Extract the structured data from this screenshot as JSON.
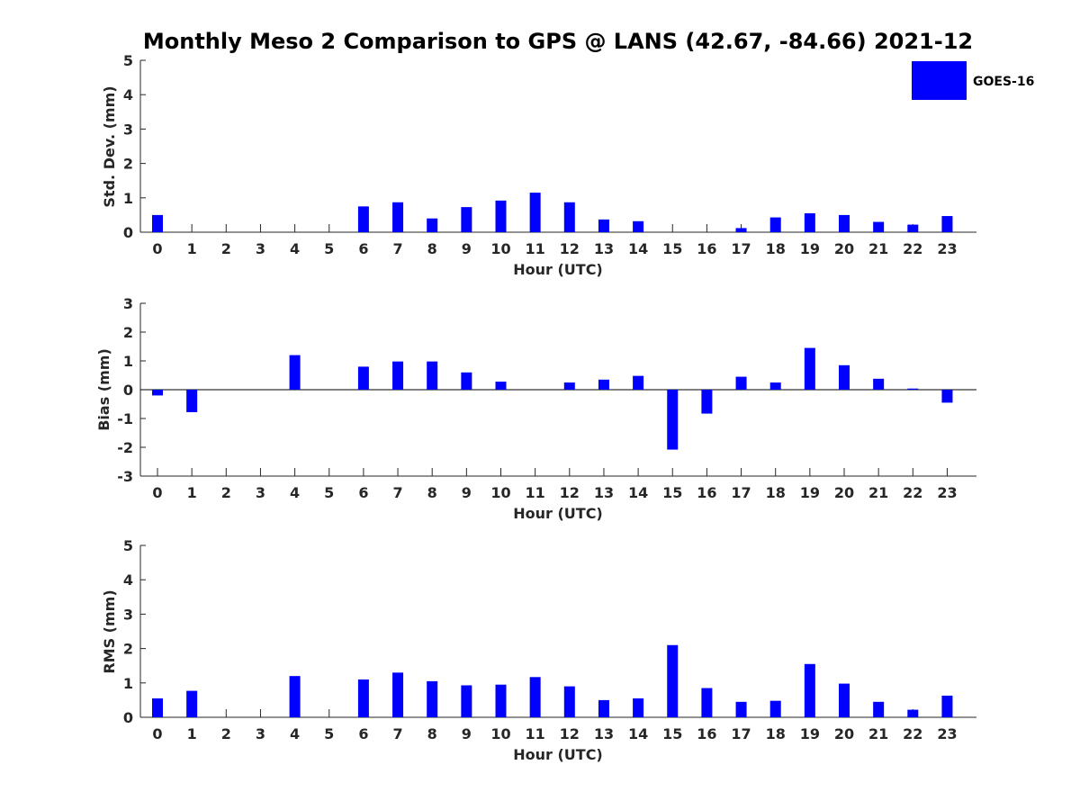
{
  "figure": {
    "title": "Monthly Meso 2 Comparison to GPS @ LANS (42.67, -84.66) 2021-12",
    "legend": {
      "entries": [
        "GOES-16"
      ],
      "placement": "top-right",
      "color": "#0000ff"
    }
  },
  "chart_data": [
    {
      "type": "bar",
      "name": "std-dev",
      "xlabel": "Hour (UTC)",
      "ylabel": "Std. Dev. (mm)",
      "ylim": [
        0,
        5
      ],
      "yticks": [
        0,
        1,
        2,
        3,
        4,
        5
      ],
      "categories": [
        "0",
        "1",
        "2",
        "3",
        "4",
        "5",
        "6",
        "7",
        "8",
        "9",
        "10",
        "11",
        "12",
        "13",
        "14",
        "15",
        "16",
        "17",
        "18",
        "19",
        "20",
        "21",
        "22",
        "23"
      ],
      "series": [
        {
          "name": "GOES-16",
          "color": "#0000ff",
          "values": [
            0.5,
            0,
            0,
            0,
            0,
            0,
            0.75,
            0.87,
            0.4,
            0.73,
            0.92,
            1.15,
            0.87,
            0.37,
            0.32,
            0,
            0,
            0.12,
            0.43,
            0.55,
            0.5,
            0.3,
            0.22,
            0.47
          ]
        }
      ]
    },
    {
      "type": "bar",
      "name": "bias",
      "xlabel": "Hour (UTC)",
      "ylabel": "Bias (mm)",
      "ylim": [
        -3,
        3
      ],
      "yticks": [
        -3,
        -2,
        -1,
        0,
        1,
        2,
        3
      ],
      "categories": [
        "0",
        "1",
        "2",
        "3",
        "4",
        "5",
        "6",
        "7",
        "8",
        "9",
        "10",
        "11",
        "12",
        "13",
        "14",
        "15",
        "16",
        "17",
        "18",
        "19",
        "20",
        "21",
        "22",
        "23"
      ],
      "series": [
        {
          "name": "GOES-16",
          "color": "#0000ff",
          "values": [
            -0.2,
            -0.78,
            0,
            0,
            1.2,
            0,
            0.8,
            0.98,
            0.98,
            0.6,
            0.28,
            0,
            0.25,
            0.35,
            0.48,
            -2.08,
            -0.83,
            0.45,
            0.25,
            1.45,
            0.85,
            0.38,
            0.04,
            -0.45
          ]
        }
      ]
    },
    {
      "type": "bar",
      "name": "rms",
      "xlabel": "Hour (UTC)",
      "ylabel": "RMS (mm)",
      "ylim": [
        0,
        5
      ],
      "yticks": [
        0,
        1,
        2,
        3,
        4,
        5
      ],
      "categories": [
        "0",
        "1",
        "2",
        "3",
        "4",
        "5",
        "6",
        "7",
        "8",
        "9",
        "10",
        "11",
        "12",
        "13",
        "14",
        "15",
        "16",
        "17",
        "18",
        "19",
        "20",
        "21",
        "22",
        "23"
      ],
      "series": [
        {
          "name": "GOES-16",
          "color": "#0000ff",
          "values": [
            0.55,
            0.77,
            0,
            0,
            1.2,
            0,
            1.1,
            1.3,
            1.05,
            0.93,
            0.95,
            1.17,
            0.9,
            0.5,
            0.55,
            2.1,
            0.85,
            0.45,
            0.48,
            1.55,
            0.98,
            0.45,
            0.22,
            0.63
          ]
        }
      ]
    }
  ]
}
